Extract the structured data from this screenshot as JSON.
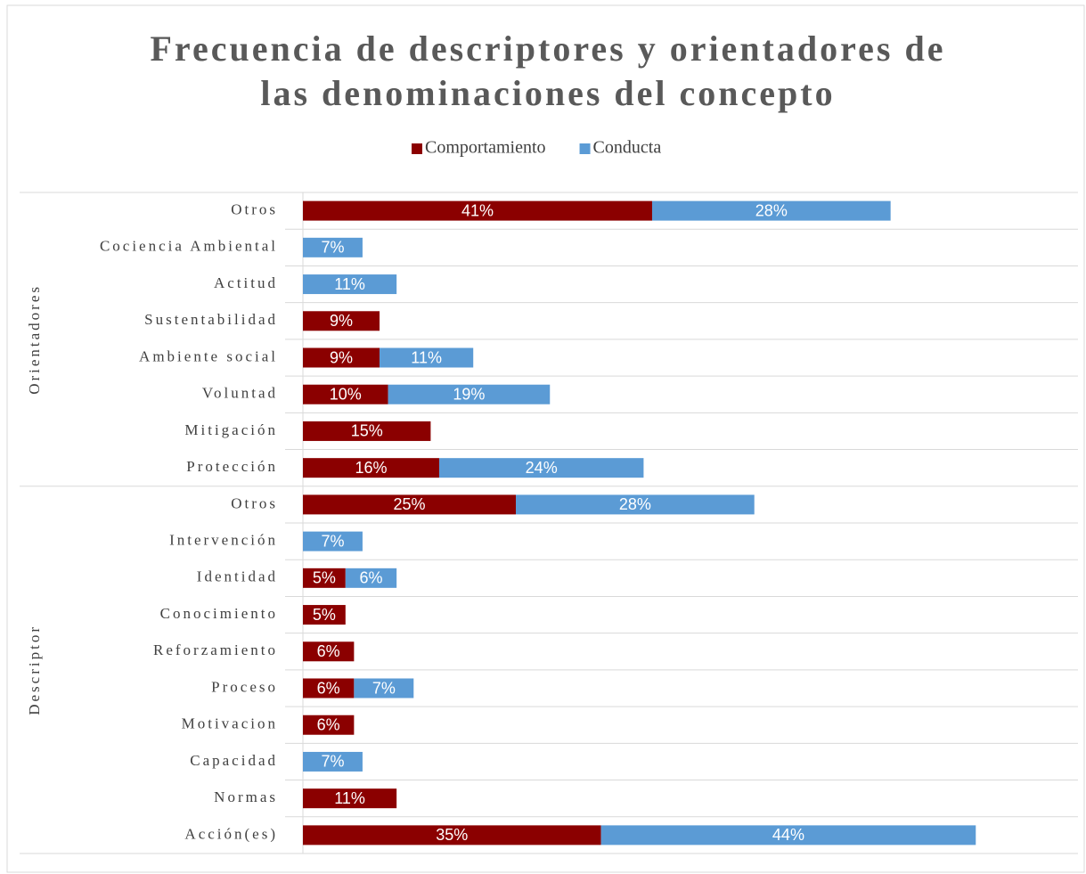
{
  "chart_data": {
    "type": "stacked-bar-horizontal",
    "title": "Frecuencia de descriptores y orientadores de las denominaciones del concepto",
    "groups": [
      {
        "label": "Orientadores",
        "categories": [
          "Otros",
          "Cociencia Ambiental",
          "Actitud",
          "Sustentabilidad",
          "Ambiente social",
          "Voluntad",
          "Mitigación",
          "Protección"
        ]
      },
      {
        "label": "Descriptor",
        "categories": [
          "Otros",
          "Intervención",
          "Identidad",
          "Conocimiento",
          "Reforzamiento",
          "Proceso",
          "Motivacion",
          "Capacidad",
          "Normas",
          "Acción(es)"
        ]
      }
    ],
    "series": [
      {
        "name": "Comportamiento",
        "color": "#8b0000",
        "values": [
          41,
          null,
          null,
          9,
          9,
          10,
          15,
          16,
          25,
          null,
          5,
          5,
          6,
          6,
          6,
          null,
          11,
          35
        ],
        "value_labels": [
          "41%",
          null,
          null,
          "9%",
          "9%",
          "10%",
          "15%",
          "16%",
          "25%",
          null,
          "5%",
          "5%",
          "6%",
          "6%",
          "6%",
          null,
          "11%",
          "35%"
        ]
      },
      {
        "name": "Conducta",
        "color": "#5b9bd5",
        "values": [
          28,
          7,
          11,
          null,
          11,
          19,
          null,
          24,
          28,
          7,
          6,
          null,
          null,
          7,
          null,
          7,
          null,
          44
        ],
        "value_labels": [
          "28%",
          "7%",
          "11%",
          null,
          "11%",
          "19%",
          null,
          "24%",
          "28%",
          "7%",
          "6%",
          null,
          null,
          "7%",
          null,
          "7%",
          null,
          "44%"
        ]
      }
    ],
    "xlim": [
      0,
      91
    ],
    "legend": "top"
  }
}
